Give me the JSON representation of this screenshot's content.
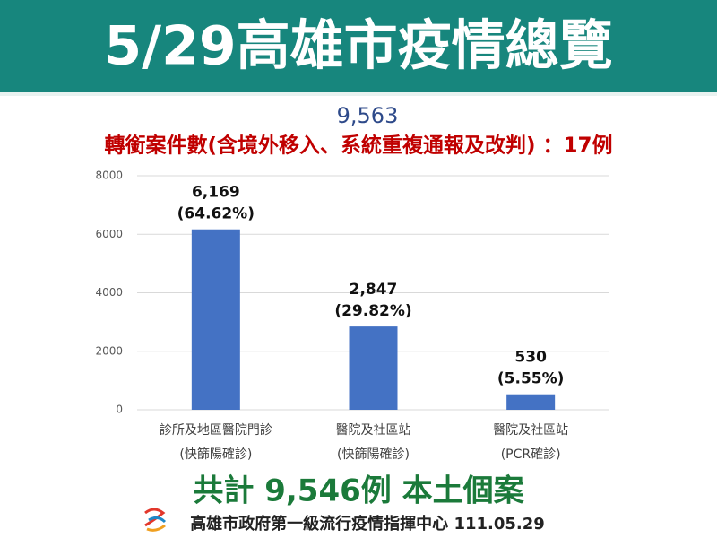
{
  "header": {
    "title": "5/29高雄市疫情總覽"
  },
  "chart_data": {
    "type": "bar",
    "annotations": [
      "9,563",
      "轉銜案件數(含境外移入、系統重複通報及改判) ：17例"
    ],
    "categories": [
      "診所及地區醫院門診\n(快篩陽確診)",
      "醫院及社區站\n(快篩陽確診)",
      "醫院及社區站\n(PCR確診)"
    ],
    "values": [
      6169,
      2847,
      530
    ],
    "value_labels": [
      "6,169",
      "2,847",
      "530"
    ],
    "percent_labels": [
      "(64.62%)",
      "(29.82%)",
      "(5.55%)"
    ],
    "color": "#4472c4",
    "ylim": [
      0,
      8000
    ],
    "yticks": [
      0,
      2000,
      4000,
      6000,
      8000
    ],
    "grid": true
  },
  "footer": {
    "summary": "共計 9,546例 本土個案",
    "source": "高雄市政府第一級流行疫情指揮中心 111.05.29"
  }
}
